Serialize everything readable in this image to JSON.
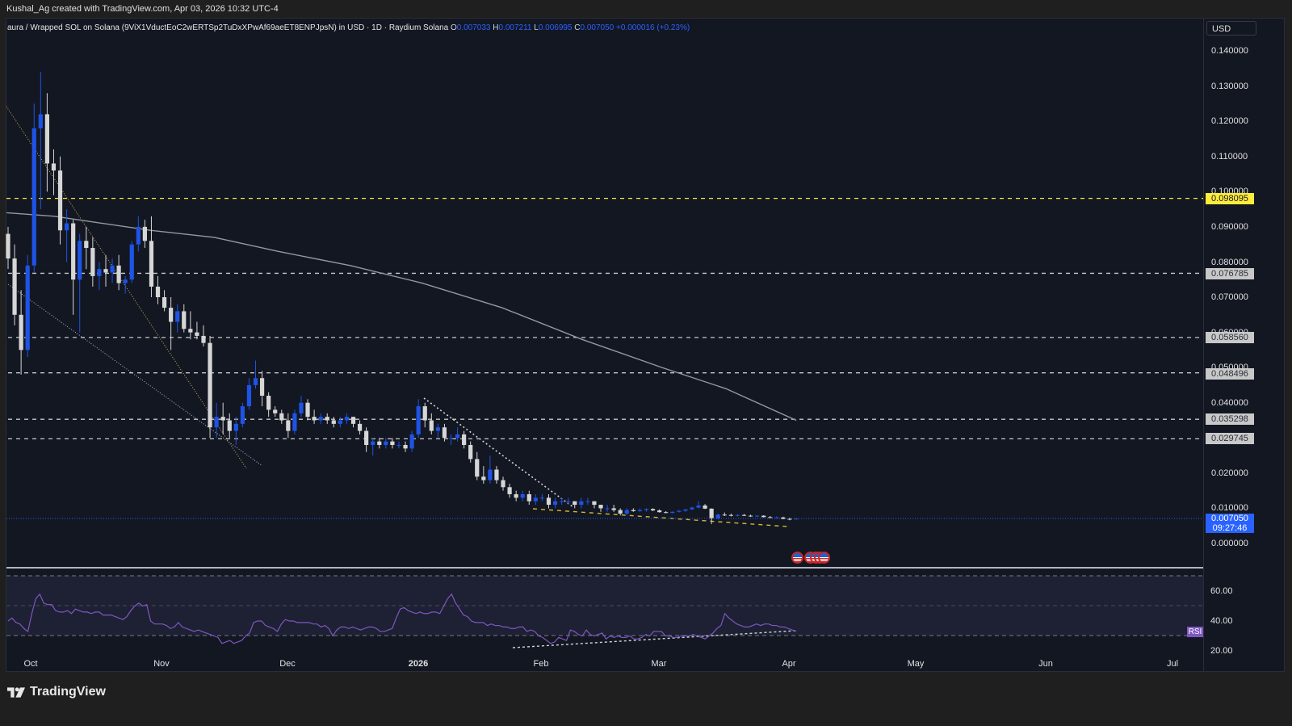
{
  "header": {
    "credit": "Kushal_Ag created with TradingView.com, Apr 03, 2026 10:32 UTC-4"
  },
  "legend": {
    "symbol": "aura / Wrapped SOL on Solana (9ViX1VductEoC2wERTSp2TuDxXPwAf69aeET8ENPJpsN) in USD · 1D · Raydium Solana",
    "o_label": "O",
    "o": "0.007033",
    "h_label": "H",
    "h": "0.007211",
    "l_label": "L",
    "l": "0.006995",
    "c_label": "C",
    "c": "0.007050",
    "change": "+0.000016 (+0.23%)"
  },
  "price_axis": {
    "currency_button": "USD",
    "ticks": [
      "0.140000",
      "0.130000",
      "0.120000",
      "0.110000",
      "0.100000",
      "0.090000",
      "0.080000",
      "0.070000",
      "0.060000",
      "0.050000",
      "0.040000",
      "0.020000",
      "0.010000",
      "0.000000"
    ],
    "current_price": "0.007050",
    "countdown": "09:27:46"
  },
  "levels": [
    {
      "price": "0.098095",
      "color": "#ffeb3b",
      "style": "yellow"
    },
    {
      "price": "0.076785",
      "color": "#c8c8c8",
      "style": "gray"
    },
    {
      "price": "0.058560",
      "color": "#c8c8c8",
      "style": "gray"
    },
    {
      "price": "0.048496",
      "color": "#c8c8c8",
      "style": "gray"
    },
    {
      "price": "0.035298",
      "color": "#c8c8c8",
      "style": "gray"
    },
    {
      "price": "0.029745",
      "color": "#c8c8c8",
      "style": "gray"
    }
  ],
  "rsi": {
    "badge": "RSI",
    "ticks": [
      "60.00",
      "40.00",
      "20.00"
    ]
  },
  "time_axis": {
    "labels": [
      {
        "text": "Oct",
        "x": 38,
        "bold": false
      },
      {
        "text": "Nov",
        "x": 200,
        "bold": false
      },
      {
        "text": "Dec",
        "x": 356,
        "bold": false
      },
      {
        "text": "2026",
        "x": 518,
        "bold": true
      },
      {
        "text": "Feb",
        "x": 670,
        "bold": false
      },
      {
        "text": "Mar",
        "x": 816,
        "bold": false
      },
      {
        "text": "Apr",
        "x": 977,
        "bold": false
      },
      {
        "text": "May",
        "x": 1134,
        "bold": false
      },
      {
        "text": "Jun",
        "x": 1295,
        "bold": false
      },
      {
        "text": "Jul",
        "x": 1452,
        "bold": false
      }
    ]
  },
  "footer": {
    "brand": "TradingView"
  },
  "colors": {
    "background": "#131722",
    "bull": "#1e53e5",
    "bear": "#d6d6d6",
    "ma": "#9598a1",
    "rsi_line": "#7e57c2",
    "yellow_level": "#ffeb3b",
    "accent": "#2962ff"
  },
  "chart_data": {
    "type": "candlestick",
    "title": "aura / Wrapped SOL on Solana in USD · 1D · Raydium Solana",
    "xlabel": "",
    "ylabel": "USD",
    "ylim": [
      0,
      0.145
    ],
    "x_ticks": [
      "Oct",
      "Nov",
      "Dec",
      "2026",
      "Feb",
      "Mar",
      "Apr",
      "May",
      "Jun",
      "Jul"
    ],
    "y_ticks": [
      0.0,
      0.01,
      0.02,
      0.04,
      0.05,
      0.06,
      0.07,
      0.08,
      0.09,
      0.1,
      0.11,
      0.12,
      0.13,
      0.14
    ],
    "last": {
      "open": 0.007033,
      "high": 0.007211,
      "low": 0.006995,
      "close": 0.00705,
      "change": 1.6e-05,
      "change_pct": 0.23
    },
    "horizontal_levels": [
      0.098095,
      0.076785,
      0.05856,
      0.048496,
      0.035298,
      0.029745
    ],
    "candles_ohlc_approx": [
      [
        0.088,
        0.09,
        0.078,
        0.081
      ],
      [
        0.081,
        0.085,
        0.062,
        0.065
      ],
      [
        0.065,
        0.072,
        0.048,
        0.055
      ],
      [
        0.055,
        0.082,
        0.053,
        0.079
      ],
      [
        0.079,
        0.125,
        0.077,
        0.118
      ],
      [
        0.118,
        0.134,
        0.095,
        0.122
      ],
      [
        0.122,
        0.128,
        0.1,
        0.108
      ],
      [
        0.108,
        0.112,
        0.099,
        0.106
      ],
      [
        0.106,
        0.11,
        0.085,
        0.089
      ],
      [
        0.089,
        0.095,
        0.08,
        0.091
      ],
      [
        0.091,
        0.092,
        0.065,
        0.075
      ],
      [
        0.075,
        0.088,
        0.06,
        0.086
      ],
      [
        0.086,
        0.09,
        0.078,
        0.084
      ],
      [
        0.084,
        0.087,
        0.073,
        0.076
      ],
      [
        0.076,
        0.08,
        0.072,
        0.078
      ],
      [
        0.078,
        0.082,
        0.073,
        0.077
      ],
      [
        0.077,
        0.081,
        0.074,
        0.079
      ],
      [
        0.079,
        0.082,
        0.072,
        0.074
      ],
      [
        0.074,
        0.076,
        0.071,
        0.075
      ],
      [
        0.075,
        0.086,
        0.074,
        0.085
      ],
      [
        0.085,
        0.093,
        0.083,
        0.09
      ],
      [
        0.09,
        0.092,
        0.084,
        0.086
      ],
      [
        0.086,
        0.093,
        0.07,
        0.073
      ],
      [
        0.073,
        0.076,
        0.068,
        0.07
      ],
      [
        0.07,
        0.072,
        0.066,
        0.067
      ],
      [
        0.067,
        0.07,
        0.055,
        0.063
      ],
      [
        0.063,
        0.068,
        0.06,
        0.066
      ],
      [
        0.066,
        0.068,
        0.06,
        0.061
      ],
      [
        0.061,
        0.066,
        0.058,
        0.06
      ],
      [
        0.06,
        0.063,
        0.058,
        0.059
      ],
      [
        0.059,
        0.062,
        0.056,
        0.057
      ],
      [
        0.057,
        0.059,
        0.03,
        0.033
      ],
      [
        0.033,
        0.04,
        0.03,
        0.036
      ],
      [
        0.036,
        0.04,
        0.031,
        0.035
      ],
      [
        0.035,
        0.037,
        0.03,
        0.032
      ],
      [
        0.032,
        0.036,
        0.028,
        0.034
      ],
      [
        0.034,
        0.04,
        0.033,
        0.039
      ],
      [
        0.039,
        0.047,
        0.038,
        0.045
      ],
      [
        0.045,
        0.052,
        0.044,
        0.047
      ],
      [
        0.047,
        0.049,
        0.039,
        0.042
      ],
      [
        0.042,
        0.043,
        0.036,
        0.038
      ],
      [
        0.038,
        0.039,
        0.036,
        0.037
      ],
      [
        0.037,
        0.038,
        0.034,
        0.035
      ],
      [
        0.035,
        0.037,
        0.03,
        0.032
      ],
      [
        0.032,
        0.038,
        0.031,
        0.037
      ],
      [
        0.037,
        0.042,
        0.036,
        0.04
      ],
      [
        0.04,
        0.041,
        0.035,
        0.036
      ],
      [
        0.036,
        0.038,
        0.034,
        0.035
      ],
      [
        0.035,
        0.037,
        0.034,
        0.036
      ],
      [
        0.036,
        0.037,
        0.034,
        0.035
      ],
      [
        0.035,
        0.036,
        0.033,
        0.034
      ],
      [
        0.034,
        0.036,
        0.033,
        0.035
      ],
      [
        0.035,
        0.037,
        0.034,
        0.036
      ],
      [
        0.036,
        0.036,
        0.033,
        0.034
      ],
      [
        0.034,
        0.035,
        0.031,
        0.032
      ],
      [
        0.032,
        0.033,
        0.026,
        0.028
      ],
      [
        0.028,
        0.03,
        0.025,
        0.029
      ],
      [
        0.029,
        0.03,
        0.027,
        0.028
      ],
      [
        0.028,
        0.03,
        0.027,
        0.029
      ],
      [
        0.029,
        0.03,
        0.027,
        0.028
      ],
      [
        0.028,
        0.029,
        0.027,
        0.028
      ],
      [
        0.028,
        0.029,
        0.026,
        0.027
      ],
      [
        0.027,
        0.032,
        0.026,
        0.031
      ],
      [
        0.031,
        0.041,
        0.03,
        0.039
      ],
      [
        0.039,
        0.04,
        0.033,
        0.035
      ],
      [
        0.035,
        0.037,
        0.031,
        0.032
      ],
      [
        0.032,
        0.034,
        0.03,
        0.033
      ],
      [
        0.033,
        0.034,
        0.029,
        0.03
      ],
      [
        0.03,
        0.031,
        0.028,
        0.03
      ],
      [
        0.03,
        0.033,
        0.029,
        0.031
      ],
      [
        0.031,
        0.032,
        0.027,
        0.028
      ],
      [
        0.028,
        0.029,
        0.023,
        0.024
      ],
      [
        0.024,
        0.026,
        0.018,
        0.019
      ],
      [
        0.019,
        0.022,
        0.017,
        0.018
      ],
      [
        0.018,
        0.025,
        0.017,
        0.021
      ],
      [
        0.021,
        0.022,
        0.017,
        0.018
      ],
      [
        0.018,
        0.019,
        0.015,
        0.016
      ],
      [
        0.016,
        0.017,
        0.013,
        0.014
      ],
      [
        0.014,
        0.015,
        0.012,
        0.013
      ],
      [
        0.013,
        0.015,
        0.012,
        0.014
      ],
      [
        0.014,
        0.015,
        0.011,
        0.012
      ],
      [
        0.012,
        0.014,
        0.011,
        0.013
      ],
      [
        0.013,
        0.014,
        0.012,
        0.013
      ],
      [
        0.013,
        0.014,
        0.01,
        0.011
      ],
      [
        0.011,
        0.013,
        0.01,
        0.012
      ],
      [
        0.012,
        0.013,
        0.011,
        0.012
      ],
      [
        0.012,
        0.013,
        0.011,
        0.012
      ],
      [
        0.012,
        0.012,
        0.01,
        0.011
      ],
      [
        0.011,
        0.013,
        0.01,
        0.012
      ],
      [
        0.012,
        0.013,
        0.011,
        0.012
      ],
      [
        0.012,
        0.012,
        0.01,
        0.011
      ],
      [
        0.011,
        0.011,
        0.009,
        0.01
      ],
      [
        0.01,
        0.011,
        0.009,
        0.01
      ],
      [
        0.01,
        0.011,
        0.009,
        0.0095
      ],
      [
        0.0095,
        0.01,
        0.008,
        0.0085
      ],
      [
        0.0085,
        0.01,
        0.008,
        0.0095
      ],
      [
        0.0095,
        0.01,
        0.009,
        0.0092
      ],
      [
        0.0092,
        0.01,
        0.009,
        0.0095
      ],
      [
        0.0095,
        0.01,
        0.009,
        0.0098
      ],
      [
        0.0098,
        0.01,
        0.0092,
        0.0094
      ],
      [
        0.0094,
        0.0097,
        0.0088,
        0.0089
      ],
      [
        0.0089,
        0.0092,
        0.0086,
        0.0087
      ],
      [
        0.0087,
        0.0091,
        0.0085,
        0.009
      ],
      [
        0.009,
        0.0095,
        0.0088,
        0.0093
      ],
      [
        0.0093,
        0.0098,
        0.009,
        0.0097
      ],
      [
        0.0097,
        0.0105,
        0.0095,
        0.0102
      ],
      [
        0.0102,
        0.012,
        0.01,
        0.0108
      ],
      [
        0.0108,
        0.0112,
        0.0098,
        0.0099
      ],
      [
        0.0099,
        0.01,
        0.0055,
        0.0072
      ],
      [
        0.0072,
        0.0085,
        0.0068,
        0.0082
      ],
      [
        0.0082,
        0.0088,
        0.0078,
        0.0081
      ],
      [
        0.0081,
        0.0085,
        0.0077,
        0.0079
      ],
      [
        0.0079,
        0.0083,
        0.0077,
        0.0081
      ],
      [
        0.0081,
        0.0084,
        0.0078,
        0.0079
      ],
      [
        0.0079,
        0.0082,
        0.0076,
        0.0077
      ],
      [
        0.0077,
        0.0081,
        0.0075,
        0.0079
      ],
      [
        0.0079,
        0.008,
        0.0074,
        0.0075
      ],
      [
        0.0075,
        0.0078,
        0.0072,
        0.0073
      ],
      [
        0.0073,
        0.0077,
        0.0071,
        0.0074
      ],
      [
        0.0074,
        0.0076,
        0.0069,
        0.007
      ],
      [
        0.007,
        0.0073,
        0.0066,
        0.0068
      ],
      [
        0.007033,
        0.007211,
        0.006995,
        0.00705
      ]
    ],
    "moving_average_points_approx": [
      [
        0,
        0.094
      ],
      [
        60,
        0.093
      ],
      [
        120,
        0.091
      ],
      [
        180,
        0.089
      ],
      [
        260,
        0.087
      ],
      [
        340,
        0.083
      ],
      [
        430,
        0.079
      ],
      [
        520,
        0.074
      ],
      [
        620,
        0.067
      ],
      [
        720,
        0.058
      ],
      [
        820,
        0.05
      ],
      [
        900,
        0.044
      ],
      [
        988,
        0.035
      ]
    ],
    "rsi": {
      "bands": [
        70,
        50,
        30
      ],
      "ylim": [
        15,
        75
      ],
      "ticks": [
        60,
        40,
        20
      ]
    }
  }
}
